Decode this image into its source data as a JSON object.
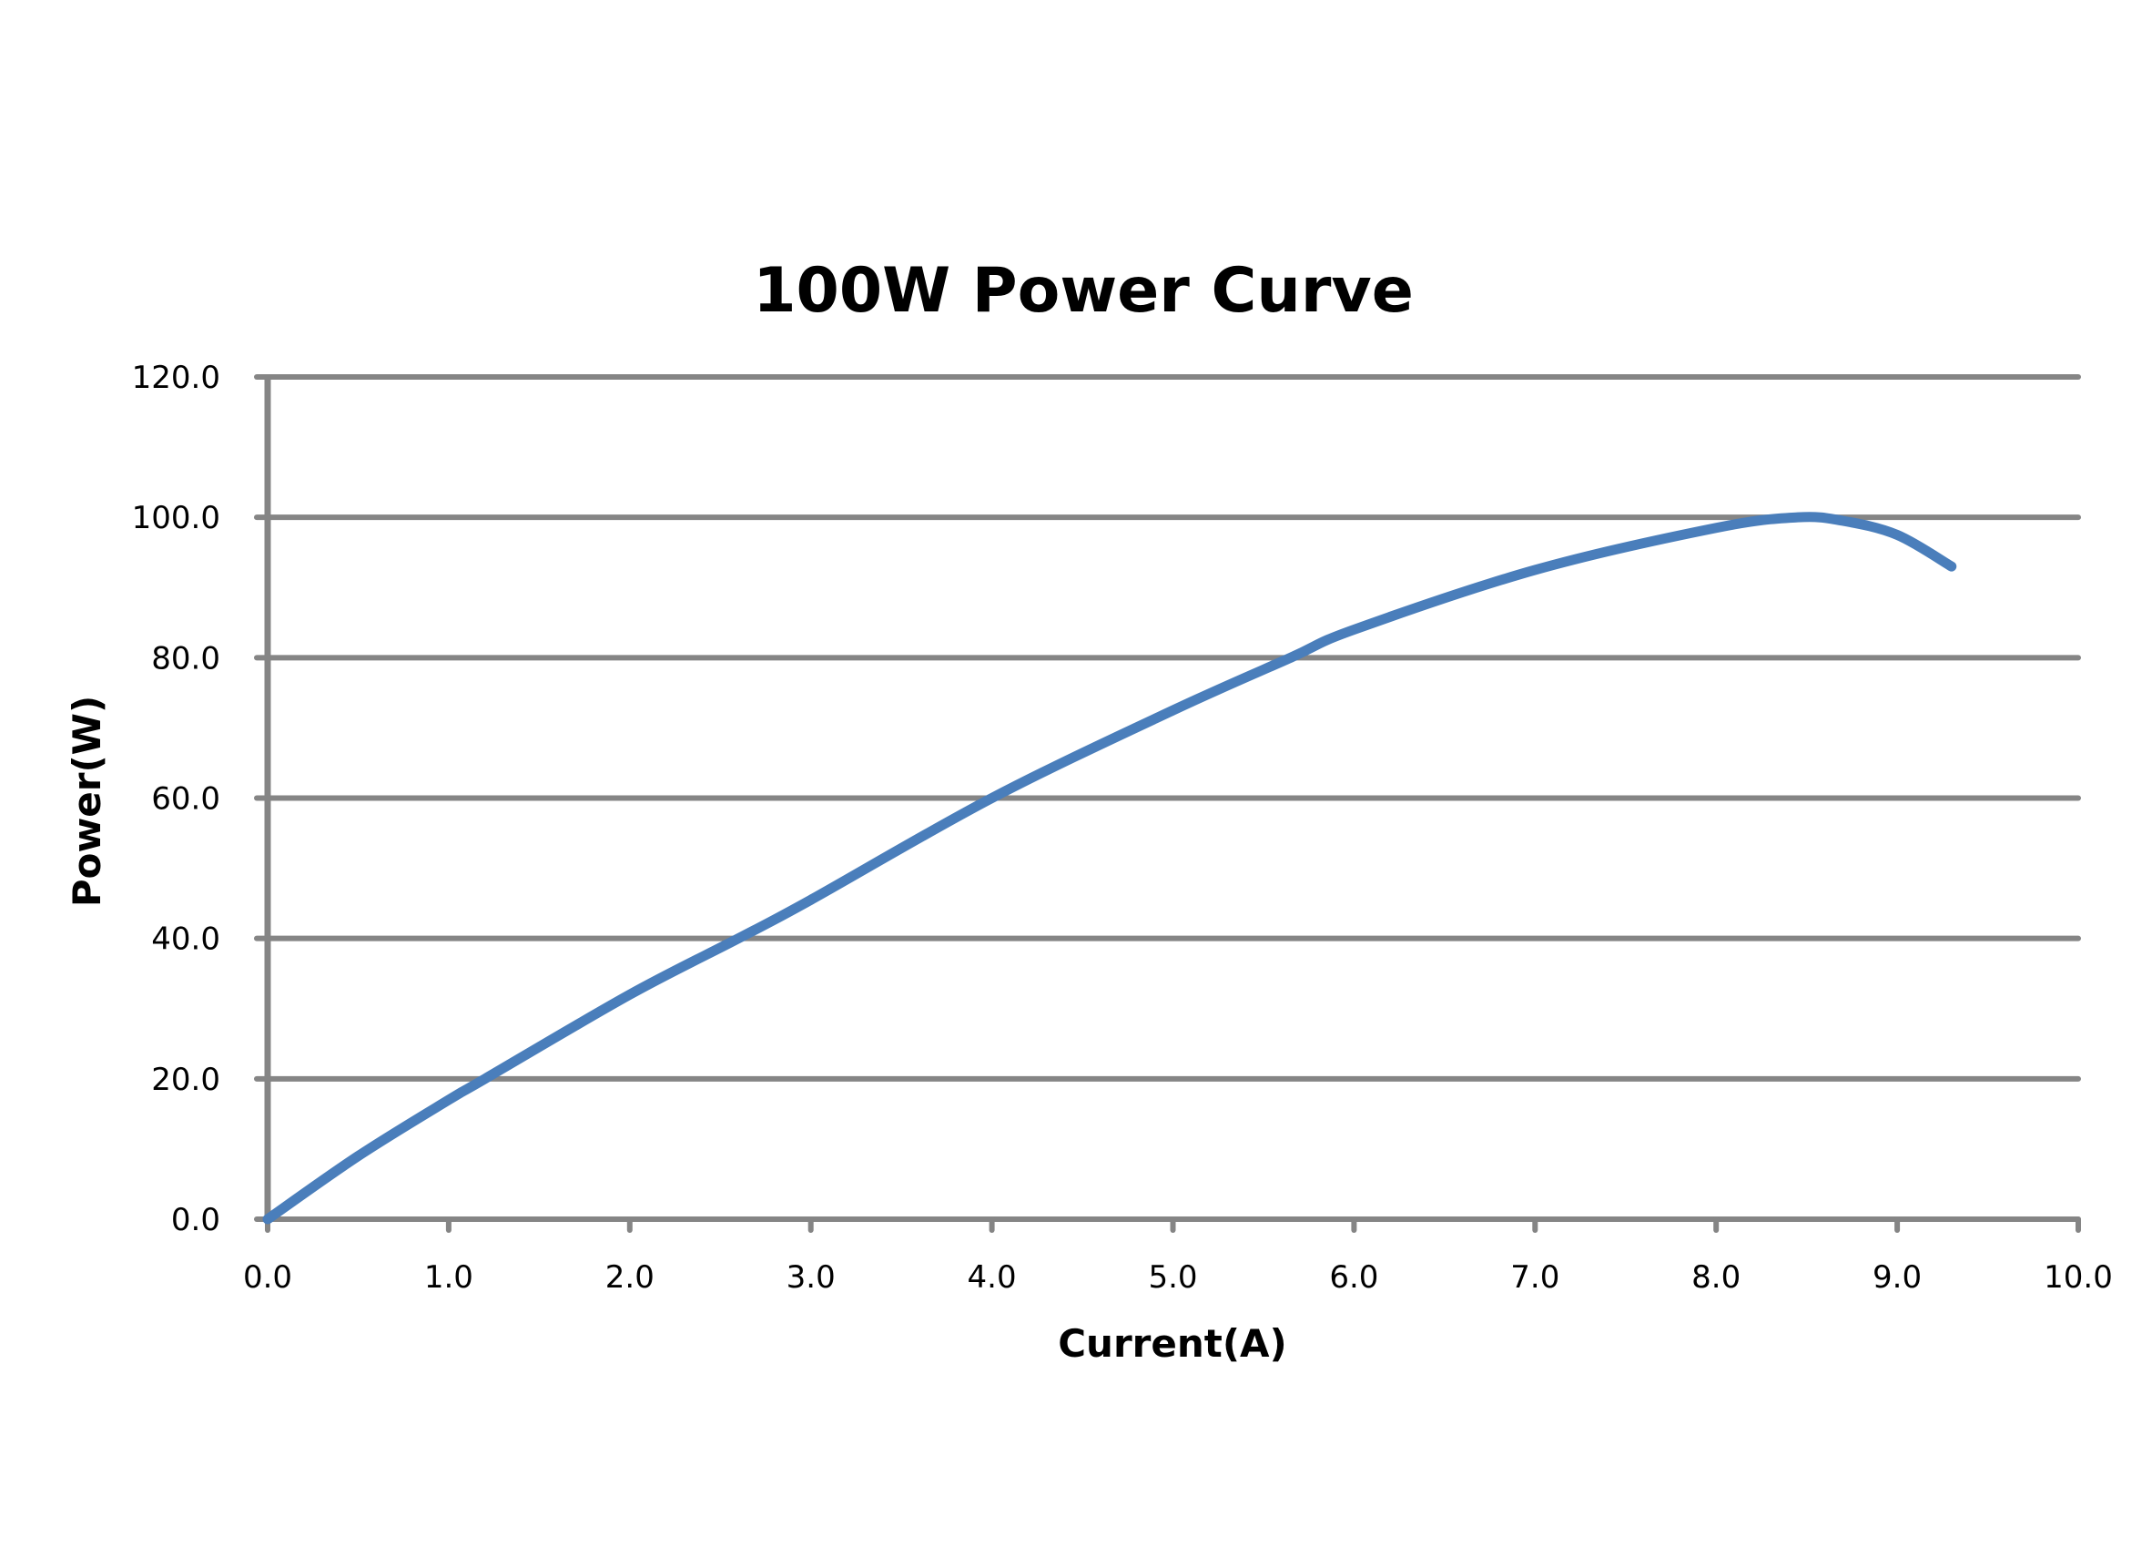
{
  "chart_data": {
    "type": "line",
    "title": "100W Power Curve",
    "xlabel": "Current(A)",
    "ylabel": "Power(W)",
    "xlim": [
      0,
      10
    ],
    "ylim": [
      0,
      120
    ],
    "x_ticks": [
      "0.0",
      "1.0",
      "2.0",
      "3.0",
      "4.0",
      "5.0",
      "6.0",
      "7.0",
      "8.0",
      "9.0",
      "10.0"
    ],
    "y_ticks": [
      "0.0",
      "20.0",
      "40.0",
      "60.0",
      "80.0",
      "100.0",
      "120.0"
    ],
    "grid": "horizontal",
    "legend": "none",
    "series": [
      {
        "name": "Power",
        "color": "#4a7ebb",
        "x": [
          0,
          0.5,
          1.0,
          1.2,
          2.0,
          2.6,
          3.0,
          4.0,
          5.0,
          5.65,
          6.0,
          7.0,
          8.0,
          8.45,
          8.7,
          9.0,
          9.3
        ],
        "y": [
          0,
          9,
          17,
          20,
          32,
          40,
          45.5,
          60,
          72.5,
          80,
          84,
          92.5,
          98.5,
          100,
          99.5,
          97.5,
          93
        ]
      }
    ]
  }
}
